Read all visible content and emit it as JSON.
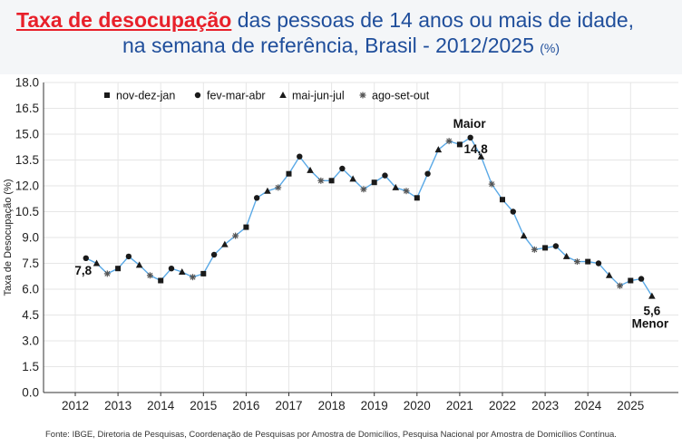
{
  "title": {
    "highlight": "Taxa de desocupação",
    "line1_rest": "das pessoas de 14 anos ou mais de idade,",
    "line2": "na semana de referência, Brasil - 2012/2025",
    "unit": "(%)"
  },
  "source": "Fonte: IBGE, Diretoria de Pesquisas, Coordenação de Pesquisas por Amostra de Domicílios, Pesquisa Nacional por Amostra de Domicílios Contínua.",
  "colors": {
    "highlight": "#e8202a",
    "title": "#1f4e9b",
    "line": "#5aa9e6",
    "marker": "#1a1a1a",
    "grid": "#e6e6e6"
  },
  "chart_data": {
    "type": "line",
    "title": "",
    "xlabel": "",
    "ylabel": "Taxa de Desocupação (%)",
    "ylim": [
      0,
      18
    ],
    "yticks": [
      "0.0",
      "1.5",
      "3.0",
      "4.5",
      "6.0",
      "7.5",
      "9.0",
      "10.5",
      "12.0",
      "13.5",
      "15.0",
      "16.5",
      "18.0"
    ],
    "xticks": [
      "2012",
      "2013",
      "2014",
      "2015",
      "2016",
      "2017",
      "2018",
      "2019",
      "2020",
      "2021",
      "2022",
      "2023",
      "2024",
      "2025"
    ],
    "grid": true,
    "legend_position": "top-left",
    "legend": [
      {
        "label": "nov-dez-jan",
        "marker": "square"
      },
      {
        "label": "fev-mar-abr",
        "marker": "circle"
      },
      {
        "label": "mai-jun-jul",
        "marker": "triangle"
      },
      {
        "label": "ago-set-out",
        "marker": "star"
      }
    ],
    "start_period": "fev-mar-abr 2012",
    "values": [
      7.8,
      7.5,
      6.9,
      7.2,
      7.9,
      7.4,
      6.8,
      6.5,
      7.2,
      7.0,
      6.7,
      6.9,
      8.0,
      8.6,
      9.1,
      9.6,
      11.3,
      11.7,
      11.9,
      12.7,
      13.7,
      12.9,
      12.3,
      12.3,
      13.0,
      12.4,
      11.8,
      12.2,
      12.6,
      11.9,
      11.7,
      11.3,
      12.7,
      14.1,
      14.6,
      14.4,
      14.8,
      13.7,
      12.1,
      11.2,
      10.5,
      9.1,
      8.3,
      8.4,
      8.5,
      7.9,
      7.6,
      7.6,
      7.5,
      6.8,
      6.2,
      6.5,
      6.6,
      5.6
    ],
    "annotations": [
      {
        "text": "7,8"
      },
      {
        "text": "Maior"
      },
      {
        "text": "14,8"
      },
      {
        "text": "5,6"
      },
      {
        "text": "Menor"
      }
    ]
  }
}
